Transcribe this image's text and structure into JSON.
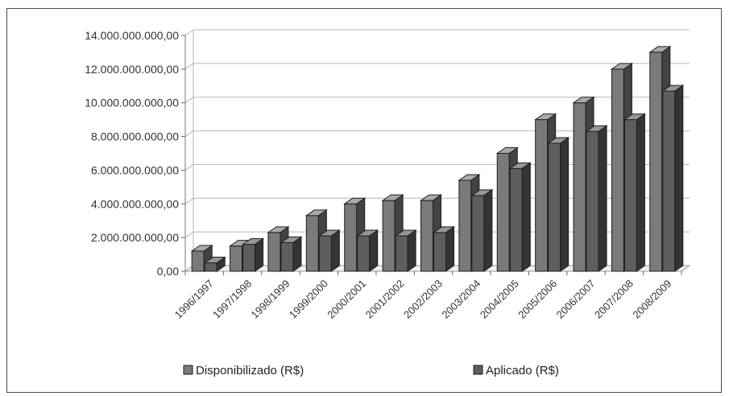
{
  "chart_data": {
    "type": "bar",
    "three_d": true,
    "categories": [
      "1996/1997",
      "1997/1998",
      "1998/1999",
      "1999/2000",
      "2000/2001",
      "2001/2002",
      "2002/2003",
      "2003/2004",
      "2004/2005",
      "2005/2006",
      "2006/2007",
      "2007/2008",
      "2008/2009"
    ],
    "series": [
      {
        "name": "Disponibilizado (R$)",
        "color": "#7a7a7a",
        "values": [
          1200000000,
          1500000000,
          2300000000,
          3300000000,
          4000000000,
          4200000000,
          4200000000,
          5400000000,
          7000000000,
          9000000000,
          10000000000,
          12000000000,
          13000000000
        ]
      },
      {
        "name": "Aplicado (R$)",
        "color": "#5e5e5e",
        "values": [
          500000000,
          1600000000,
          1700000000,
          2100000000,
          2100000000,
          2100000000,
          2300000000,
          4500000000,
          6100000000,
          7600000000,
          8300000000,
          9000000000,
          10700000000
        ]
      }
    ],
    "y_ticks": [
      "0,00",
      "2.000.000.000,00",
      "4.000.000.000,00",
      "6.000.000.000,00",
      "8.000.000.000,00",
      "10.000.000.000,00",
      "12.000.000.000,00",
      "14.000.000.000,00"
    ],
    "ylim": [
      0,
      14000000000
    ],
    "grid": true,
    "legend": "bottom",
    "title": "",
    "xlabel": "",
    "ylabel": ""
  }
}
